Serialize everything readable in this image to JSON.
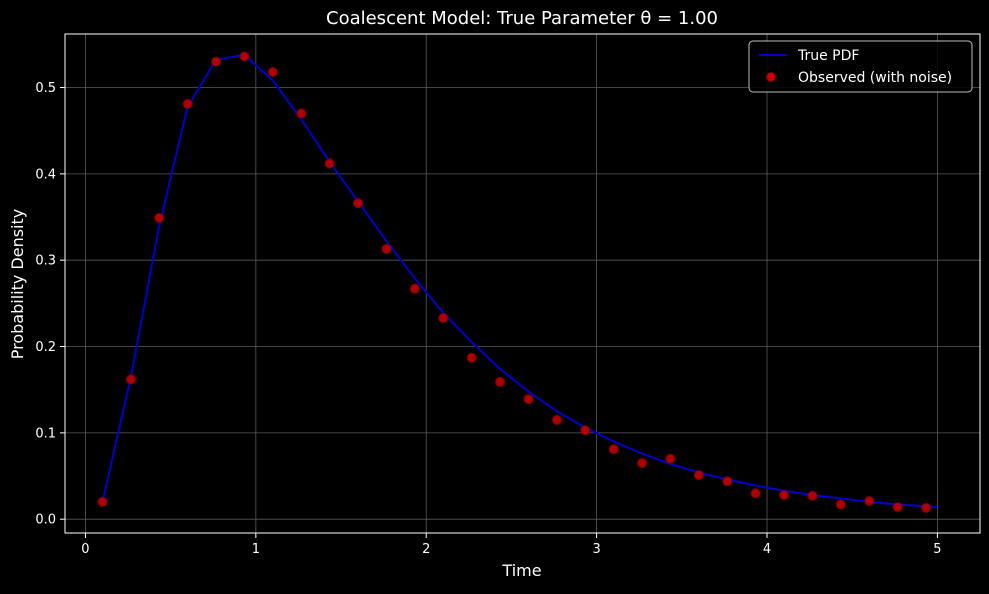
{
  "chart_data": {
    "type": "line",
    "title": "Coalescent Model: True Parameter θ = 1.00",
    "xlabel": "Time",
    "ylabel": "Probability Density",
    "xlim": [
      -0.12,
      5.25
    ],
    "ylim": [
      -0.016,
      0.562
    ],
    "x_ticks": [
      0,
      1,
      2,
      3,
      4,
      5
    ],
    "x_tick_labels": [
      "0",
      "1",
      "2",
      "3",
      "4",
      "5"
    ],
    "y_ticks": [
      0.0,
      0.1,
      0.2,
      0.3,
      0.4,
      0.5
    ],
    "y_tick_labels": [
      "0.0",
      "0.1",
      "0.2",
      "0.3",
      "0.4",
      "0.5"
    ],
    "grid": true,
    "legend_position": "top-right",
    "colors": {
      "background": "#000000",
      "axes": "#ffffff",
      "grid": "#5a5a5a",
      "line": "#0000cc",
      "points": "#cc0000",
      "points_edge": "#7a0000"
    },
    "series": [
      {
        "name": "True PDF",
        "kind": "line",
        "x": [
          0.1,
          0.267,
          0.433,
          0.6,
          0.767,
          0.933,
          1.1,
          1.267,
          1.433,
          1.6,
          1.767,
          1.933,
          2.1,
          2.267,
          2.433,
          2.6,
          2.767,
          2.933,
          3.1,
          3.267,
          3.433,
          3.6,
          3.767,
          3.933,
          4.1,
          4.267,
          4.433,
          4.6,
          4.767,
          4.933,
          5.0
        ],
        "y": [
          0.02,
          0.165,
          0.34,
          0.478,
          0.532,
          0.538,
          0.508,
          0.463,
          0.414,
          0.368,
          0.322,
          0.279,
          0.239,
          0.205,
          0.174,
          0.148,
          0.125,
          0.106,
          0.09,
          0.076,
          0.064,
          0.054,
          0.046,
          0.039,
          0.033,
          0.028,
          0.024,
          0.02,
          0.017,
          0.015,
          0.014
        ]
      },
      {
        "name": "Observed (with noise)",
        "kind": "scatter",
        "x": [
          0.1,
          0.267,
          0.433,
          0.6,
          0.767,
          0.933,
          1.1,
          1.267,
          1.433,
          1.6,
          1.767,
          1.933,
          2.1,
          2.267,
          2.433,
          2.6,
          2.767,
          2.933,
          3.1,
          3.267,
          3.433,
          3.6,
          3.767,
          3.933,
          4.1,
          4.267,
          4.433,
          4.6,
          4.767,
          4.933
        ],
        "y": [
          0.02,
          0.162,
          0.349,
          0.481,
          0.53,
          0.536,
          0.518,
          0.47,
          0.412,
          0.366,
          0.313,
          0.267,
          0.233,
          0.187,
          0.159,
          0.139,
          0.115,
          0.103,
          0.081,
          0.065,
          0.07,
          0.051,
          0.044,
          0.03,
          0.028,
          0.027,
          0.017,
          0.021,
          0.014,
          0.013
        ]
      }
    ]
  }
}
